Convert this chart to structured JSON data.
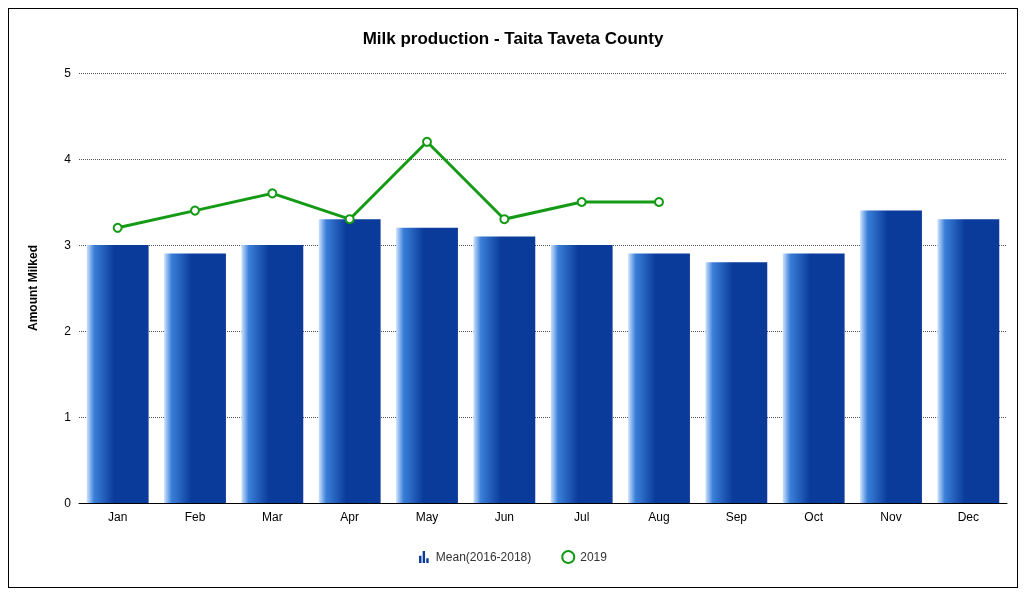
{
  "chart_data": {
    "type": "bar",
    "title": "Milk production - Taita Taveta County",
    "ylabel": "Amount Milked",
    "categories": [
      "Jan",
      "Feb",
      "Mar",
      "Apr",
      "May",
      "Jun",
      "Jul",
      "Aug",
      "Sep",
      "Oct",
      "Nov",
      "Dec"
    ],
    "series": [
      {
        "name": "Mean(2016-2018)",
        "type": "bar",
        "color": "#0a3a9a",
        "values": [
          3.0,
          2.9,
          3.0,
          3.3,
          3.2,
          3.1,
          3.0,
          2.9,
          2.8,
          2.9,
          3.4,
          3.3
        ]
      },
      {
        "name": "2019",
        "type": "line",
        "color": "#149a14",
        "values": [
          3.2,
          3.4,
          3.6,
          3.3,
          4.2,
          3.3,
          3.5,
          3.5,
          null,
          null,
          null,
          null
        ]
      }
    ],
    "ylim": [
      0,
      5
    ],
    "yticks": [
      0,
      1,
      2,
      3,
      4,
      5
    ],
    "grid": "y",
    "legend": "bottom",
    "marker": "circle"
  }
}
